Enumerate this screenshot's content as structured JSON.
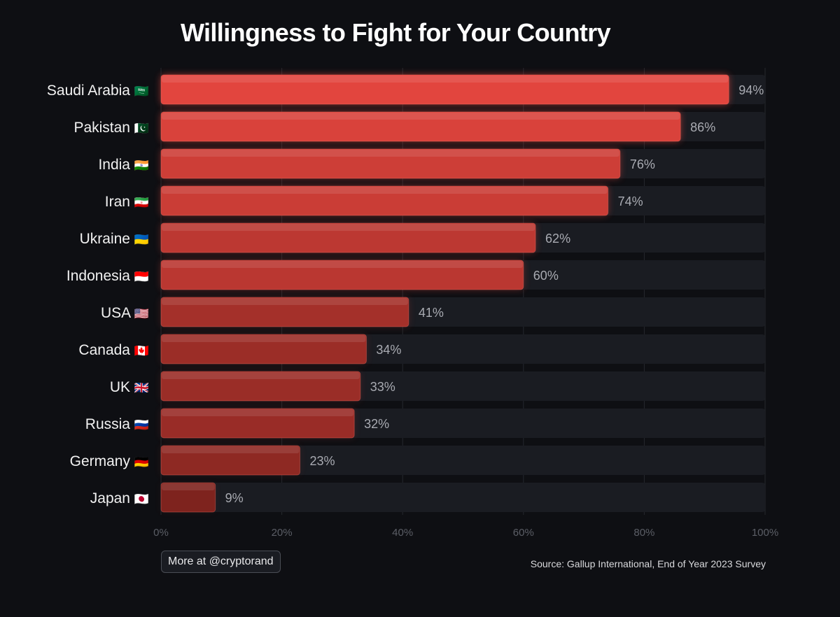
{
  "chart_data": {
    "type": "bar",
    "orientation": "horizontal",
    "title": "Willingness to Fight for Your Country",
    "categories": [
      "Saudi Arabia",
      "Pakistan",
      "India",
      "Iran",
      "Ukraine",
      "Indonesia",
      "USA",
      "Canada",
      "UK",
      "Russia",
      "Germany",
      "Japan"
    ],
    "flags": [
      "🇸🇦",
      "🇵🇰",
      "🇮🇳",
      "🇮🇷",
      "🇺🇦",
      "🇮🇩",
      "🇺🇸",
      "🇨🇦",
      "🇬🇧",
      "🇷🇺",
      "🇩🇪",
      "🇯🇵"
    ],
    "values": [
      94,
      86,
      76,
      74,
      62,
      60,
      41,
      34,
      33,
      32,
      23,
      9
    ],
    "value_labels": [
      "94%",
      "86%",
      "76%",
      "74%",
      "62%",
      "60%",
      "41%",
      "34%",
      "33%",
      "32%",
      "23%",
      "9%"
    ],
    "xlim": [
      0,
      100
    ],
    "xticks": [
      0,
      20,
      40,
      60,
      80,
      100
    ],
    "xtick_labels": [
      "0%",
      "20%",
      "40%",
      "60%",
      "80%",
      "100%"
    ],
    "xlabel": "",
    "ylabel": "",
    "grid": true,
    "colors": {
      "bar_high": "#e2453e",
      "bar_low": "#7e231e",
      "track": "#1a1c22",
      "grid": "#26282e"
    }
  },
  "footer": {
    "button_label": "More at @cryptorand",
    "source": "Source: Gallup International, End of Year 2023 Survey"
  }
}
